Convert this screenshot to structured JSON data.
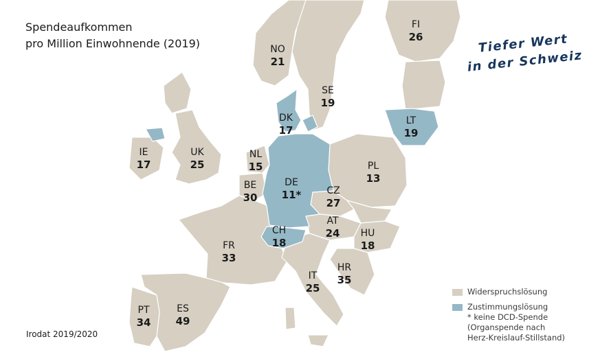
{
  "title": [
    "Spendeaufkommen",
    "pro Million Einwohnende (2019)"
  ],
  "slogan": [
    "Tiefer Wert",
    "in der Schweiz"
  ],
  "source": "Irodat 2019/2020",
  "colors": {
    "opt_out": "#d6cfc2",
    "opt_in": "#95b8c6",
    "slogan": "#16355c",
    "border": "#ffffff"
  },
  "countries": [
    {
      "code": "NO",
      "value": "21"
    },
    {
      "code": "SE",
      "value": "19"
    },
    {
      "code": "FI",
      "value": "26"
    },
    {
      "code": "DK",
      "value": "17"
    },
    {
      "code": "LT",
      "value": "19"
    },
    {
      "code": "IE",
      "value": "17"
    },
    {
      "code": "UK",
      "value": "25"
    },
    {
      "code": "NL",
      "value": "15"
    },
    {
      "code": "BE",
      "value": "30"
    },
    {
      "code": "DE",
      "value": "11*"
    },
    {
      "code": "PL",
      "value": "13"
    },
    {
      "code": "CZ",
      "value": "27"
    },
    {
      "code": "AT",
      "value": "24"
    },
    {
      "code": "HU",
      "value": "18"
    },
    {
      "code": "CH",
      "value": "18"
    },
    {
      "code": "FR",
      "value": "33"
    },
    {
      "code": "IT",
      "value": "25"
    },
    {
      "code": "HR",
      "value": "35"
    },
    {
      "code": "PT",
      "value": "34"
    },
    {
      "code": "ES",
      "value": "49"
    }
  ],
  "legend": {
    "opt_out_label": "Widerspruchslösung",
    "opt_in_label": "Zustimmungslösung",
    "footnote": [
      "* keine DCD-Spende",
      "(Organspende nach",
      "Herz-Kreislauf-Stillstand)"
    ]
  }
}
